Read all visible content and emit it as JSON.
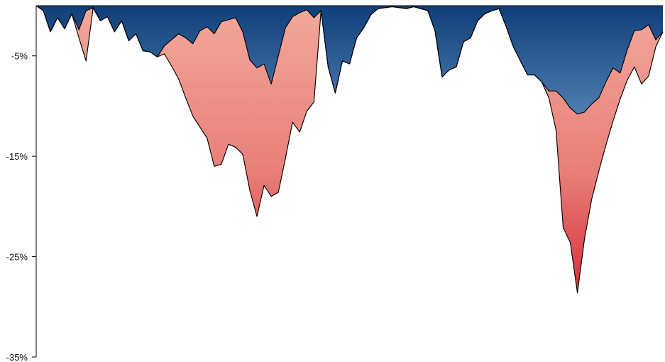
{
  "chart_data": {
    "type": "area",
    "title": "",
    "xlabel": "",
    "ylabel": "",
    "ylim": [
      -35,
      0
    ],
    "y_tick_values": [
      -5,
      -15,
      -25,
      -35
    ],
    "y_tick_labels": [
      "-5%",
      "-15%",
      "-25%",
      "-35%"
    ],
    "grid": false,
    "legend": "none",
    "colors": {
      "blue_top": "#0f3f7a",
      "blue_bottom": "#4f7db1",
      "red_top": "#f2a89b",
      "red_mid": "#e87f78",
      "red_bottom": "#d72f3a",
      "outline": "#000000"
    },
    "x_index": [
      0,
      10,
      20,
      30,
      40,
      50,
      60,
      70,
      80,
      90,
      100,
      110,
      120,
      130,
      140,
      150,
      160,
      170,
      180,
      190,
      200,
      210,
      220,
      230,
      240,
      250,
      260,
      270,
      280,
      290,
      300,
      310,
      320,
      330,
      340,
      350,
      360,
      370,
      380,
      390,
      400,
      410,
      420,
      430,
      440,
      450,
      460,
      470,
      480,
      490,
      500,
      510,
      520,
      530,
      540,
      550,
      560,
      570,
      580,
      590,
      600,
      610,
      620,
      630,
      640,
      650,
      660,
      670,
      680,
      690,
      700,
      710,
      720,
      730,
      740,
      750,
      760,
      770,
      780,
      790,
      800,
      810,
      820,
      830,
      840,
      850,
      860,
      870,
      880
    ],
    "series": [
      {
        "values": [
          0,
          -0.5,
          -2.6,
          -1.2,
          -2.3,
          -0.8,
          -2.4,
          -0.5,
          -0.2,
          -1.5,
          -1.1,
          -2.6,
          -1.5,
          -3.5,
          -2.8,
          -4.5,
          -4.6,
          -5.1,
          -4.0,
          -3.4,
          -2.8,
          -3.2,
          -3.8,
          -2.5,
          -2.1,
          -2.8,
          -1.6,
          -1.4,
          -1.2,
          -2.6,
          -5.4,
          -6.2,
          -5.8,
          -7.8,
          -5.0,
          -2.2,
          -1.1,
          -0.7,
          -0.4,
          -1.2,
          -0.5,
          -6.1,
          -8.7,
          -5.5,
          -5.8,
          -3.2,
          -2.2,
          -0.9,
          -0.3,
          -0.2,
          -0.1,
          -0.2,
          -0.3,
          -0.1,
          -0.3,
          -0.5,
          -2.5,
          -7.1,
          -6.4,
          -6.1,
          -3.6,
          -3.2,
          -1.5,
          -0.8,
          -0.5,
          -0.3,
          -2.1,
          -4.1,
          -5.5,
          -6.9,
          -6.9,
          -7.6,
          -8.5,
          -8.5,
          -9.2,
          -10.2,
          -10.8,
          -10.6,
          -9.8,
          -9.2,
          -7.6,
          -6.2,
          -6.7,
          -4.4,
          -2.5,
          -2.4,
          -1.9,
          -3.4,
          -2.6
        ]
      },
      {
        "values": [
          0,
          -0.5,
          -2.6,
          -1.2,
          -2.3,
          -0.8,
          -3.2,
          -5.5,
          -0.2,
          -1.5,
          -1.1,
          -2.6,
          -1.5,
          -3.5,
          -2.8,
          -4.5,
          -4.6,
          -5.1,
          -4.8,
          -6.0,
          -7.3,
          -9.2,
          -11.0,
          -12.1,
          -13.2,
          -16.0,
          -15.8,
          -13.8,
          -14.1,
          -14.8,
          -18.4,
          -21.0,
          -17.9,
          -19.0,
          -18.6,
          -15.2,
          -11.6,
          -12.6,
          -10.5,
          -9.6,
          -0.5,
          -6.1,
          -8.7,
          -5.5,
          -5.8,
          -3.2,
          -2.2,
          -0.9,
          -0.3,
          -0.2,
          -0.1,
          -0.2,
          -0.3,
          -0.1,
          -0.3,
          -0.5,
          -2.5,
          -7.1,
          -6.4,
          -6.1,
          -3.6,
          -3.2,
          -1.5,
          -0.8,
          -0.5,
          -0.3,
          -2.1,
          -4.1,
          -5.5,
          -6.9,
          -6.9,
          -7.6,
          -9.2,
          -12.4,
          -22.1,
          -23.6,
          -28.6,
          -23.2,
          -19.3,
          -16.5,
          -13.9,
          -11.5,
          -9.3,
          -7.4,
          -6.1,
          -7.8,
          -7.0,
          -4.1,
          -2.6
        ]
      }
    ]
  }
}
